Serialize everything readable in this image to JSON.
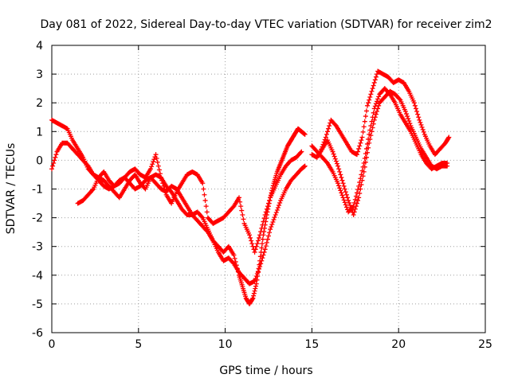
{
  "chart_data": {
    "type": "scatter",
    "title": "Day 081 of 2022, Sidereal Day-to-day VTEC variation (SDTVAR) for receiver zim2",
    "xlabel": "GPS time / hours",
    "ylabel": "SDTVAR / TECUs",
    "xlim": [
      0,
      25
    ],
    "ylim": [
      -6,
      4
    ],
    "xticks": [
      0,
      5,
      10,
      15,
      20,
      25
    ],
    "yticks": [
      -6,
      -5,
      -4,
      -3,
      -2,
      -1,
      0,
      1,
      2,
      3,
      4
    ],
    "grid": true,
    "legend": "none",
    "marker": "+",
    "color": "#ff0000",
    "series": [
      {
        "x": [
          0.0,
          0.3,
          0.6,
          0.9,
          1.2,
          1.5,
          1.8,
          2.1,
          2.4,
          2.7,
          3.0,
          3.3,
          3.6,
          3.9,
          4.2,
          4.5,
          4.8,
          5.1,
          5.4,
          5.7,
          6.0,
          6.3,
          6.6,
          6.9,
          7.2,
          7.5,
          7.8,
          8.1,
          8.4,
          8.7,
          9.0,
          9.3,
          9.6,
          9.9,
          10.2,
          10.5,
          10.8,
          11.0,
          11.2,
          11.4,
          11.6,
          11.8,
          12.0,
          12.2,
          12.4,
          12.6,
          12.8,
          13.0,
          13.2,
          13.4,
          13.6,
          13.8,
          14.0,
          14.2,
          14.4,
          14.6
        ],
        "y": [
          1.4,
          1.3,
          1.2,
          1.1,
          0.7,
          0.4,
          0.1,
          -0.3,
          -0.5,
          -0.6,
          -0.7,
          -0.9,
          -1.1,
          -1.3,
          -1.0,
          -0.7,
          -0.5,
          -0.8,
          -1.0,
          -0.6,
          -0.5,
          -0.6,
          -0.9,
          -1.1,
          -1.4,
          -1.7,
          -1.9,
          -1.9,
          -1.8,
          -2.0,
          -2.4,
          -2.8,
          -3.0,
          -3.2,
          -3.0,
          -3.3,
          -4.0,
          -4.4,
          -4.8,
          -5.0,
          -4.8,
          -4.3,
          -3.5,
          -2.6,
          -1.9,
          -1.3,
          -0.8,
          -0.4,
          -0.1,
          0.2,
          0.5,
          0.7,
          0.9,
          1.1,
          1.0,
          0.9
        ]
      },
      {
        "x": [
          0.0,
          0.3,
          0.6,
          0.9,
          1.2,
          1.5,
          1.8,
          2.1,
          2.4,
          2.7,
          3.0,
          3.3,
          3.6,
          3.9,
          4.2,
          4.5,
          4.8,
          5.1,
          5.4,
          5.7,
          6.0,
          6.3,
          6.6,
          6.9,
          7.2,
          7.5,
          7.8,
          8.1,
          8.4,
          8.7,
          9.0,
          9.3,
          9.6,
          9.9,
          10.2,
          10.5,
          10.8,
          11.1,
          11.4,
          11.7,
          12.0,
          12.3,
          12.6,
          12.9,
          13.2,
          13.5,
          13.8,
          14.1,
          14.4,
          14.6
        ],
        "y": [
          -0.3,
          0.3,
          0.6,
          0.6,
          0.4,
          0.2,
          0.0,
          -0.2,
          -0.5,
          -0.7,
          -0.9,
          -1.0,
          -0.9,
          -0.7,
          -0.6,
          -0.8,
          -1.0,
          -0.9,
          -0.7,
          -0.6,
          -0.8,
          -1.0,
          -1.1,
          -0.9,
          -1.0,
          -1.3,
          -1.6,
          -1.9,
          -2.1,
          -2.3,
          -2.5,
          -2.8,
          -3.2,
          -3.5,
          -3.4,
          -3.6,
          -3.9,
          -4.1,
          -4.3,
          -4.2,
          -3.7,
          -3.1,
          -2.4,
          -1.9,
          -1.4,
          -1.0,
          -0.7,
          -0.5,
          -0.3,
          -0.2
        ]
      },
      {
        "x": [
          1.5,
          1.8,
          2.1,
          2.4,
          2.7,
          3.0,
          3.3,
          3.6,
          3.9,
          4.2,
          4.5,
          4.8,
          5.1,
          5.4,
          5.7,
          6.0,
          6.3,
          6.6,
          6.9,
          7.2,
          7.5,
          7.8,
          8.1,
          8.4,
          8.7,
          9.0,
          9.3,
          9.6,
          9.9,
          10.2,
          10.5,
          10.8,
          11.1,
          11.4,
          11.7,
          12.0,
          12.3,
          12.6,
          12.9,
          13.2,
          13.5,
          13.8,
          14.1,
          14.4
        ],
        "y": [
          -1.5,
          -1.4,
          -1.2,
          -1.0,
          -0.6,
          -0.4,
          -0.7,
          -0.9,
          -0.8,
          -0.6,
          -0.4,
          -0.3,
          -0.5,
          -0.6,
          -0.3,
          0.2,
          -0.6,
          -1.2,
          -1.5,
          -1.1,
          -0.8,
          -0.5,
          -0.4,
          -0.5,
          -0.8,
          -2.0,
          -2.2,
          -2.1,
          -2.0,
          -1.8,
          -1.6,
          -1.3,
          -2.2,
          -2.6,
          -3.2,
          -2.6,
          -1.9,
          -1.3,
          -0.9,
          -0.5,
          -0.2,
          0.0,
          0.1,
          0.3
        ]
      },
      {
        "x": [
          15.0,
          15.3,
          15.6,
          15.9,
          16.2,
          16.5,
          16.8,
          17.1,
          17.4,
          17.7,
          18.0,
          18.3,
          18.6,
          18.9,
          19.2,
          19.5,
          19.8,
          20.1,
          20.4,
          20.7,
          21.0,
          21.3,
          21.6,
          21.9,
          22.2,
          22.5,
          22.8
        ],
        "y": [
          0.5,
          0.3,
          0.1,
          -0.1,
          -0.4,
          -0.8,
          -1.3,
          -1.8,
          -1.6,
          -0.9,
          -0.1,
          0.9,
          1.8,
          2.3,
          2.5,
          2.3,
          2.0,
          1.6,
          1.3,
          1.0,
          0.6,
          0.2,
          -0.1,
          -0.3,
          -0.2,
          -0.1,
          -0.1
        ]
      },
      {
        "x": [
          15.0,
          15.3,
          15.6,
          15.9,
          16.2,
          16.5,
          16.8,
          17.1,
          17.4,
          17.7,
          18.0,
          18.3,
          18.6,
          18.9,
          19.2,
          19.5,
          19.8,
          20.1,
          20.4,
          20.7,
          21.0,
          21.3,
          21.6,
          21.9,
          22.2,
          22.5,
          22.8
        ],
        "y": [
          0.2,
          0.1,
          0.4,
          0.7,
          0.3,
          -0.2,
          -0.8,
          -1.4,
          -1.9,
          -1.3,
          -0.4,
          0.6,
          1.4,
          2.0,
          2.2,
          2.4,
          2.3,
          2.1,
          1.7,
          1.2,
          0.8,
          0.4,
          0.1,
          -0.2,
          -0.3,
          -0.2,
          -0.2
        ]
      },
      {
        "x": [
          15.5,
          15.8,
          16.1,
          16.4,
          16.7,
          17.0,
          17.3,
          17.6,
          17.9,
          18.2,
          18.5,
          18.8,
          19.1,
          19.4,
          19.7,
          20.0,
          20.3,
          20.6,
          20.9,
          21.2,
          21.5,
          21.8,
          22.1,
          22.4,
          22.7,
          22.9
        ],
        "y": [
          0.3,
          0.8,
          1.4,
          1.2,
          0.9,
          0.6,
          0.3,
          0.2,
          0.8,
          1.9,
          2.5,
          3.1,
          3.0,
          2.9,
          2.7,
          2.8,
          2.7,
          2.4,
          2.0,
          1.4,
          0.9,
          0.5,
          0.2,
          0.4,
          0.6,
          0.8
        ]
      }
    ]
  }
}
